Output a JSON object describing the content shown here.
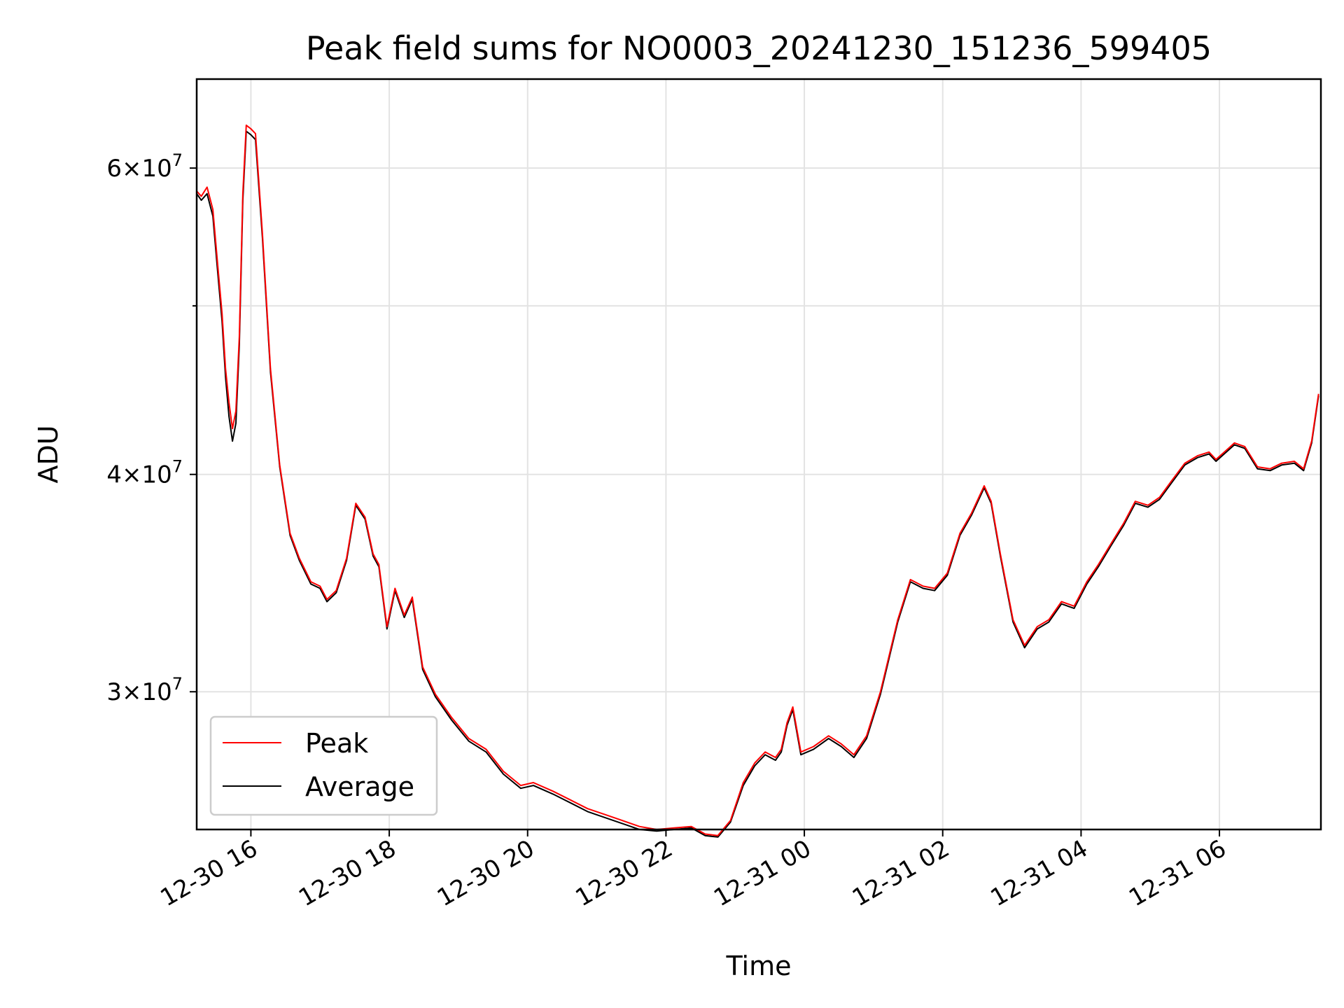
{
  "chart_data": {
    "type": "line",
    "title": "Peak field sums for NO0003_20241230_151236_599405",
    "xlabel": "Time",
    "ylabel": "ADU",
    "y_scale": "log",
    "xlim": [
      "2024-12-30 15:13",
      "2024-12-31 07:28"
    ],
    "ylim": [
      25000000,
      67500000
    ],
    "x_ticks": [
      "2024-12-30 16:00",
      "2024-12-30 18:00",
      "2024-12-30 20:00",
      "2024-12-30 22:00",
      "2024-12-31 00:00",
      "2024-12-31 02:00",
      "2024-12-31 04:00",
      "2024-12-31 06:00"
    ],
    "x_tick_labels": [
      "12-30 16",
      "12-30 18",
      "12-30 20",
      "12-30 22",
      "12-31 00",
      "12-31 02",
      "12-31 04",
      "12-31 06"
    ],
    "y_major_ticks": [
      30000000,
      40000000,
      60000000
    ],
    "y_tick_labels": [
      {
        "mantissa": "3",
        "exponent": "7"
      },
      {
        "mantissa": "4",
        "exponent": "7"
      },
      {
        "mantissa": "6",
        "exponent": "7"
      }
    ],
    "y_minor_ticks": [
      50000000
    ],
    "grid": true,
    "legend_position": "lower-left",
    "series": [
      {
        "name": "Peak",
        "color": "#ff0000",
        "points": [
          [
            "2024-12-30 15:13",
            58200000
          ],
          [
            "2024-12-30 15:17",
            57800000
          ],
          [
            "2024-12-30 15:22",
            58500000
          ],
          [
            "2024-12-30 15:27",
            56800000
          ],
          [
            "2024-12-30 15:31",
            53000000
          ],
          [
            "2024-12-30 15:35",
            49500000
          ],
          [
            "2024-12-30 15:38",
            46000000
          ],
          [
            "2024-12-30 15:41",
            44000000
          ],
          [
            "2024-12-30 15:44",
            42500000
          ],
          [
            "2024-12-30 15:47",
            43500000
          ],
          [
            "2024-12-30 15:50",
            48000000
          ],
          [
            "2024-12-30 15:53",
            58000000
          ],
          [
            "2024-12-30 15:56",
            63500000
          ],
          [
            "2024-12-30 16:00",
            63200000
          ],
          [
            "2024-12-30 16:04",
            62800000
          ],
          [
            "2024-12-30 16:10",
            55000000
          ],
          [
            "2024-12-30 16:17",
            46000000
          ],
          [
            "2024-12-30 16:25",
            40500000
          ],
          [
            "2024-12-30 16:34",
            37000000
          ],
          [
            "2024-12-30 16:42",
            35800000
          ],
          [
            "2024-12-30 16:52",
            34700000
          ],
          [
            "2024-12-30 17:00",
            34500000
          ],
          [
            "2024-12-30 17:06",
            33900000
          ],
          [
            "2024-12-30 17:14",
            34300000
          ],
          [
            "2024-12-30 17:23",
            35800000
          ],
          [
            "2024-12-30 17:31",
            38500000
          ],
          [
            "2024-12-30 17:39",
            37800000
          ],
          [
            "2024-12-30 17:46",
            36000000
          ],
          [
            "2024-12-30 17:51",
            35500000
          ],
          [
            "2024-12-30 17:58",
            32700000
          ],
          [
            "2024-12-30 18:05",
            34400000
          ],
          [
            "2024-12-30 18:13",
            33200000
          ],
          [
            "2024-12-30 18:20",
            34000000
          ],
          [
            "2024-12-30 18:29",
            31000000
          ],
          [
            "2024-12-30 18:40",
            29900000
          ],
          [
            "2024-12-30 18:54",
            29000000
          ],
          [
            "2024-12-30 19:09",
            28200000
          ],
          [
            "2024-12-30 19:24",
            27800000
          ],
          [
            "2024-12-30 19:39",
            27000000
          ],
          [
            "2024-12-30 19:54",
            26500000
          ],
          [
            "2024-12-30 20:05",
            26600000
          ],
          [
            "2024-12-30 20:22",
            26300000
          ],
          [
            "2024-12-30 20:37",
            26000000
          ],
          [
            "2024-12-30 20:52",
            25700000
          ],
          [
            "2024-12-30 21:07",
            25500000
          ],
          [
            "2024-12-30 21:22",
            25300000
          ],
          [
            "2024-12-30 21:37",
            25100000
          ],
          [
            "2024-12-30 21:52",
            25000000
          ],
          [
            "2024-12-30 22:07",
            25050000
          ],
          [
            "2024-12-30 22:22",
            25100000
          ],
          [
            "2024-12-30 22:34",
            24850000
          ],
          [
            "2024-12-30 22:45",
            24800000
          ],
          [
            "2024-12-30 22:56",
            25300000
          ],
          [
            "2024-12-30 23:07",
            26600000
          ],
          [
            "2024-12-30 23:17",
            27300000
          ],
          [
            "2024-12-30 23:26",
            27700000
          ],
          [
            "2024-12-30 23:35",
            27500000
          ],
          [
            "2024-12-30 23:40",
            27800000
          ],
          [
            "2024-12-30 23:45",
            28800000
          ],
          [
            "2024-12-30 23:50",
            29400000
          ],
          [
            "2024-12-30 23:57",
            27700000
          ],
          [
            "2024-12-31 00:08",
            27900000
          ],
          [
            "2024-12-31 00:21",
            28300000
          ],
          [
            "2024-12-31 00:32",
            28000000
          ],
          [
            "2024-12-31 00:43",
            27600000
          ],
          [
            "2024-12-31 00:54",
            28300000
          ],
          [
            "2024-12-31 01:06",
            30000000
          ],
          [
            "2024-12-31 01:21",
            33000000
          ],
          [
            "2024-12-31 01:32",
            34800000
          ],
          [
            "2024-12-31 01:43",
            34500000
          ],
          [
            "2024-12-31 01:53",
            34400000
          ],
          [
            "2024-12-31 02:04",
            35100000
          ],
          [
            "2024-12-31 02:15",
            37000000
          ],
          [
            "2024-12-31 02:25",
            38000000
          ],
          [
            "2024-12-31 02:36",
            39400000
          ],
          [
            "2024-12-31 02:42",
            38600000
          ],
          [
            "2024-12-31 02:50",
            36000000
          ],
          [
            "2024-12-31 03:01",
            33000000
          ],
          [
            "2024-12-31 03:11",
            31900000
          ],
          [
            "2024-12-31 03:22",
            32700000
          ],
          [
            "2024-12-31 03:32",
            33000000
          ],
          [
            "2024-12-31 03:43",
            33800000
          ],
          [
            "2024-12-31 03:54",
            33600000
          ],
          [
            "2024-12-31 04:05",
            34700000
          ],
          [
            "2024-12-31 04:15",
            35500000
          ],
          [
            "2024-12-31 04:26",
            36500000
          ],
          [
            "2024-12-31 04:37",
            37500000
          ],
          [
            "2024-12-31 04:47",
            38600000
          ],
          [
            "2024-12-31 04:58",
            38400000
          ],
          [
            "2024-12-31 05:08",
            38800000
          ],
          [
            "2024-12-31 05:19",
            39700000
          ],
          [
            "2024-12-31 05:30",
            40600000
          ],
          [
            "2024-12-31 05:41",
            41000000
          ],
          [
            "2024-12-31 05:51",
            41200000
          ],
          [
            "2024-12-31 05:57",
            40800000
          ],
          [
            "2024-12-31 06:06",
            41300000
          ],
          [
            "2024-12-31 06:13",
            41700000
          ],
          [
            "2024-12-31 06:22",
            41500000
          ],
          [
            "2024-12-31 06:33",
            40400000
          ],
          [
            "2024-12-31 06:44",
            40300000
          ],
          [
            "2024-12-31 06:54",
            40600000
          ],
          [
            "2024-12-31 07:05",
            40700000
          ],
          [
            "2024-12-31 07:13",
            40300000
          ],
          [
            "2024-12-31 07:20",
            41800000
          ],
          [
            "2024-12-31 07:26",
            44500000
          ]
        ]
      },
      {
        "name": "Average",
        "color": "#000000",
        "points": [
          [
            "2024-12-30 15:13",
            58000000
          ],
          [
            "2024-12-30 15:17",
            57500000
          ],
          [
            "2024-12-30 15:22",
            58000000
          ],
          [
            "2024-12-30 15:27",
            56300000
          ],
          [
            "2024-12-30 15:31",
            52500000
          ],
          [
            "2024-12-30 15:35",
            49000000
          ],
          [
            "2024-12-30 15:38",
            45500000
          ],
          [
            "2024-12-30 15:41",
            43200000
          ],
          [
            "2024-12-30 15:44",
            41800000
          ],
          [
            "2024-12-30 15:47",
            42800000
          ],
          [
            "2024-12-30 15:50",
            47500000
          ],
          [
            "2024-12-30 15:53",
            57500000
          ],
          [
            "2024-12-30 15:56",
            63000000
          ],
          [
            "2024-12-30 16:00",
            62700000
          ],
          [
            "2024-12-30 16:04",
            62300000
          ],
          [
            "2024-12-30 16:10",
            54700000
          ],
          [
            "2024-12-30 16:17",
            45800000
          ],
          [
            "2024-12-30 16:25",
            40400000
          ],
          [
            "2024-12-30 16:34",
            36900000
          ],
          [
            "2024-12-30 16:42",
            35700000
          ],
          [
            "2024-12-30 16:52",
            34600000
          ],
          [
            "2024-12-30 17:00",
            34400000
          ],
          [
            "2024-12-30 17:06",
            33800000
          ],
          [
            "2024-12-30 17:14",
            34200000
          ],
          [
            "2024-12-30 17:23",
            35700000
          ],
          [
            "2024-12-30 17:31",
            38400000
          ],
          [
            "2024-12-30 17:39",
            37700000
          ],
          [
            "2024-12-30 17:46",
            35900000
          ],
          [
            "2024-12-30 17:51",
            35400000
          ],
          [
            "2024-12-30 17:58",
            32600000
          ],
          [
            "2024-12-30 18:05",
            34300000
          ],
          [
            "2024-12-30 18:13",
            33100000
          ],
          [
            "2024-12-30 18:20",
            33900000
          ],
          [
            "2024-12-30 18:29",
            30900000
          ],
          [
            "2024-12-30 18:40",
            29800000
          ],
          [
            "2024-12-30 18:54",
            28900000
          ],
          [
            "2024-12-30 19:09",
            28100000
          ],
          [
            "2024-12-30 19:24",
            27700000
          ],
          [
            "2024-12-30 19:39",
            26900000
          ],
          [
            "2024-12-30 19:54",
            26400000
          ],
          [
            "2024-12-30 20:05",
            26500000
          ],
          [
            "2024-12-30 20:22",
            26200000
          ],
          [
            "2024-12-30 20:37",
            25900000
          ],
          [
            "2024-12-30 20:52",
            25600000
          ],
          [
            "2024-12-30 21:07",
            25400000
          ],
          [
            "2024-12-30 21:22",
            25200000
          ],
          [
            "2024-12-30 21:37",
            25000000
          ],
          [
            "2024-12-30 21:52",
            24950000
          ],
          [
            "2024-12-30 22:07",
            25000000
          ],
          [
            "2024-12-30 22:22",
            25050000
          ],
          [
            "2024-12-30 22:34",
            24800000
          ],
          [
            "2024-12-30 22:45",
            24750000
          ],
          [
            "2024-12-30 22:56",
            25250000
          ],
          [
            "2024-12-30 23:07",
            26500000
          ],
          [
            "2024-12-30 23:17",
            27200000
          ],
          [
            "2024-12-30 23:26",
            27600000
          ],
          [
            "2024-12-30 23:35",
            27400000
          ],
          [
            "2024-12-30 23:40",
            27700000
          ],
          [
            "2024-12-30 23:45",
            28700000
          ],
          [
            "2024-12-30 23:50",
            29300000
          ],
          [
            "2024-12-30 23:57",
            27600000
          ],
          [
            "2024-12-31 00:08",
            27800000
          ],
          [
            "2024-12-31 00:21",
            28200000
          ],
          [
            "2024-12-31 00:32",
            27900000
          ],
          [
            "2024-12-31 00:43",
            27500000
          ],
          [
            "2024-12-31 00:54",
            28200000
          ],
          [
            "2024-12-31 01:06",
            29900000
          ],
          [
            "2024-12-31 01:21",
            32900000
          ],
          [
            "2024-12-31 01:32",
            34700000
          ],
          [
            "2024-12-31 01:43",
            34400000
          ],
          [
            "2024-12-31 01:53",
            34300000
          ],
          [
            "2024-12-31 02:04",
            35000000
          ],
          [
            "2024-12-31 02:15",
            36900000
          ],
          [
            "2024-12-31 02:25",
            37900000
          ],
          [
            "2024-12-31 02:36",
            39300000
          ],
          [
            "2024-12-31 02:42",
            38500000
          ],
          [
            "2024-12-31 02:50",
            35900000
          ],
          [
            "2024-12-31 03:01",
            32900000
          ],
          [
            "2024-12-31 03:11",
            31800000
          ],
          [
            "2024-12-31 03:22",
            32600000
          ],
          [
            "2024-12-31 03:32",
            32900000
          ],
          [
            "2024-12-31 03:43",
            33700000
          ],
          [
            "2024-12-31 03:54",
            33500000
          ],
          [
            "2024-12-31 04:05",
            34600000
          ],
          [
            "2024-12-31 04:15",
            35400000
          ],
          [
            "2024-12-31 04:26",
            36400000
          ],
          [
            "2024-12-31 04:37",
            37400000
          ],
          [
            "2024-12-31 04:47",
            38500000
          ],
          [
            "2024-12-31 04:58",
            38300000
          ],
          [
            "2024-12-31 05:08",
            38700000
          ],
          [
            "2024-12-31 05:19",
            39600000
          ],
          [
            "2024-12-31 05:30",
            40500000
          ],
          [
            "2024-12-31 05:41",
            40900000
          ],
          [
            "2024-12-31 05:51",
            41100000
          ],
          [
            "2024-12-31 05:57",
            40700000
          ],
          [
            "2024-12-31 06:06",
            41200000
          ],
          [
            "2024-12-31 06:13",
            41600000
          ],
          [
            "2024-12-31 06:22",
            41400000
          ],
          [
            "2024-12-31 06:33",
            40300000
          ],
          [
            "2024-12-31 06:44",
            40200000
          ],
          [
            "2024-12-31 06:54",
            40500000
          ],
          [
            "2024-12-31 07:05",
            40600000
          ],
          [
            "2024-12-31 07:13",
            40200000
          ],
          [
            "2024-12-31 07:20",
            41700000
          ],
          [
            "2024-12-31 07:26",
            44400000
          ]
        ]
      }
    ]
  }
}
